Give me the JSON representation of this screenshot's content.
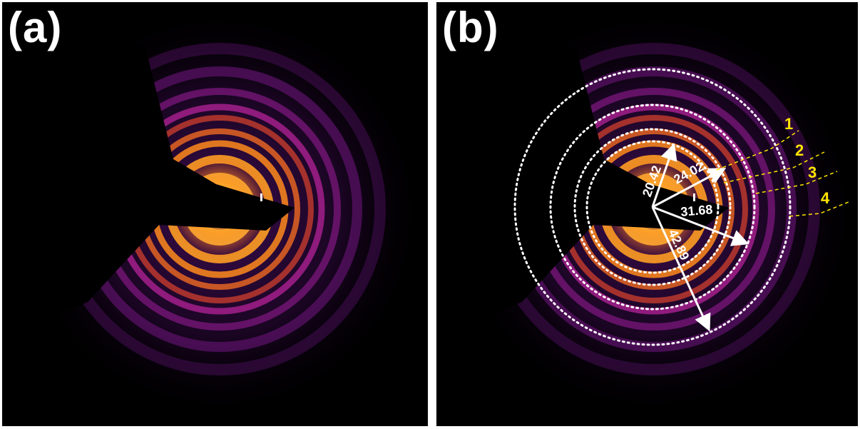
{
  "panels": [
    {
      "id": "a",
      "label": "(a)"
    },
    {
      "id": "b",
      "label": "(b)"
    }
  ],
  "colors": {
    "background": "#000000",
    "separator": "#ffffff",
    "ring_core": "#ffcf4a",
    "ring_mid": "#ff8a1c",
    "ring_outer": "#b6239a",
    "halo": "#3a0c4a",
    "annotation_white": "#ffffff",
    "annotation_yellow": "#ffe600"
  },
  "annotations": {
    "radii": [
      {
        "text": "20.42"
      },
      {
        "text": "24.02"
      },
      {
        "text": "31.68"
      },
      {
        "text": "42.89"
      }
    ],
    "ring_numbers": [
      "1",
      "2",
      "3",
      "4"
    ]
  }
}
